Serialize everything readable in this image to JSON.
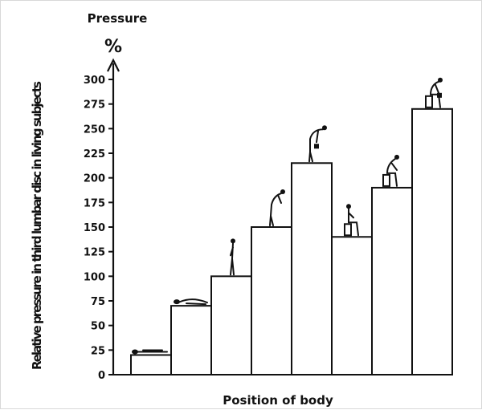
{
  "chart_data": {
    "type": "bar",
    "title": "",
    "xlabel": "Position of body",
    "ylabel": "Relative pressure in third lumbar disc in living subjects",
    "axis_title": "Pressure",
    "unit": "%",
    "ylim": [
      0,
      300
    ],
    "yticks": [
      "0",
      "25",
      "50",
      "75",
      "100",
      "125",
      "150",
      "175",
      "200",
      "225",
      "250",
      "275",
      "300"
    ],
    "categories": [
      "Lying supine",
      "Lying on side",
      "Standing",
      "Standing, leaning forward",
      "Standing, bending forward with weight",
      "Sitting upright",
      "Sitting, leaning forward",
      "Sitting, leaning forward with weight"
    ],
    "values": [
      20,
      70,
      100,
      150,
      215,
      140,
      190,
      270
    ],
    "hatched_index": 2,
    "grid": false
  },
  "colors": {
    "ink": "#111111",
    "background": "#ffffff"
  }
}
